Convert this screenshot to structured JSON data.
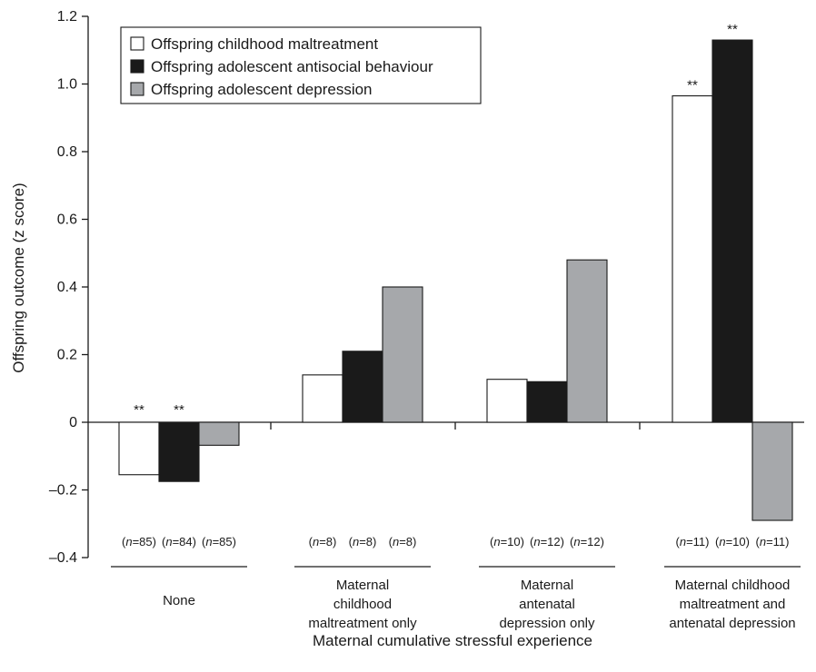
{
  "chart_data": {
    "type": "bar",
    "ylabel": "Offspring outcome (z score)",
    "xlabel": "Maternal cumulative stressful experience",
    "ylim": [
      -0.4,
      1.2
    ],
    "yticks": [
      1.2,
      1.0,
      0.8,
      0.6,
      0.4,
      0.2,
      0,
      -0.2,
      -0.4
    ],
    "ytick_labels": [
      "1.2",
      "1.0",
      "0.8",
      "0.6",
      "0.4",
      "0.2",
      "0",
      "–0.2",
      "–0.4"
    ],
    "legend_position": "top-left",
    "categories": [
      {
        "lines": [
          "None"
        ]
      },
      {
        "lines": [
          "Maternal",
          "childhood",
          "maltreatment only"
        ]
      },
      {
        "lines": [
          "Maternal",
          "antenatal",
          "depression only"
        ]
      },
      {
        "lines": [
          "Maternal childhood",
          "maltreatment and",
          "antenatal depression"
        ]
      }
    ],
    "series": [
      {
        "name": "Offspring childhood maltreatment",
        "color": "#ffffff",
        "values": [
          -0.155,
          0.14,
          0.127,
          0.965
        ],
        "n": [
          "85",
          "8",
          "10",
          "11"
        ],
        "significance": [
          "**",
          "",
          "",
          "**"
        ]
      },
      {
        "name": "Offspring adolescent antisocial behaviour",
        "color": "#1a1a1a",
        "values": [
          -0.175,
          0.21,
          0.12,
          1.13
        ],
        "n": [
          "84",
          "8",
          "12",
          "10"
        ],
        "significance": [
          "**",
          "",
          "",
          "**"
        ]
      },
      {
        "name": "Offspring adolescent depression",
        "color": "#a6a8ab",
        "values": [
          -0.068,
          0.4,
          0.48,
          -0.29
        ],
        "n": [
          "85",
          "8",
          "12",
          "11"
        ],
        "significance": [
          "",
          "",
          "",
          ""
        ]
      }
    ]
  }
}
